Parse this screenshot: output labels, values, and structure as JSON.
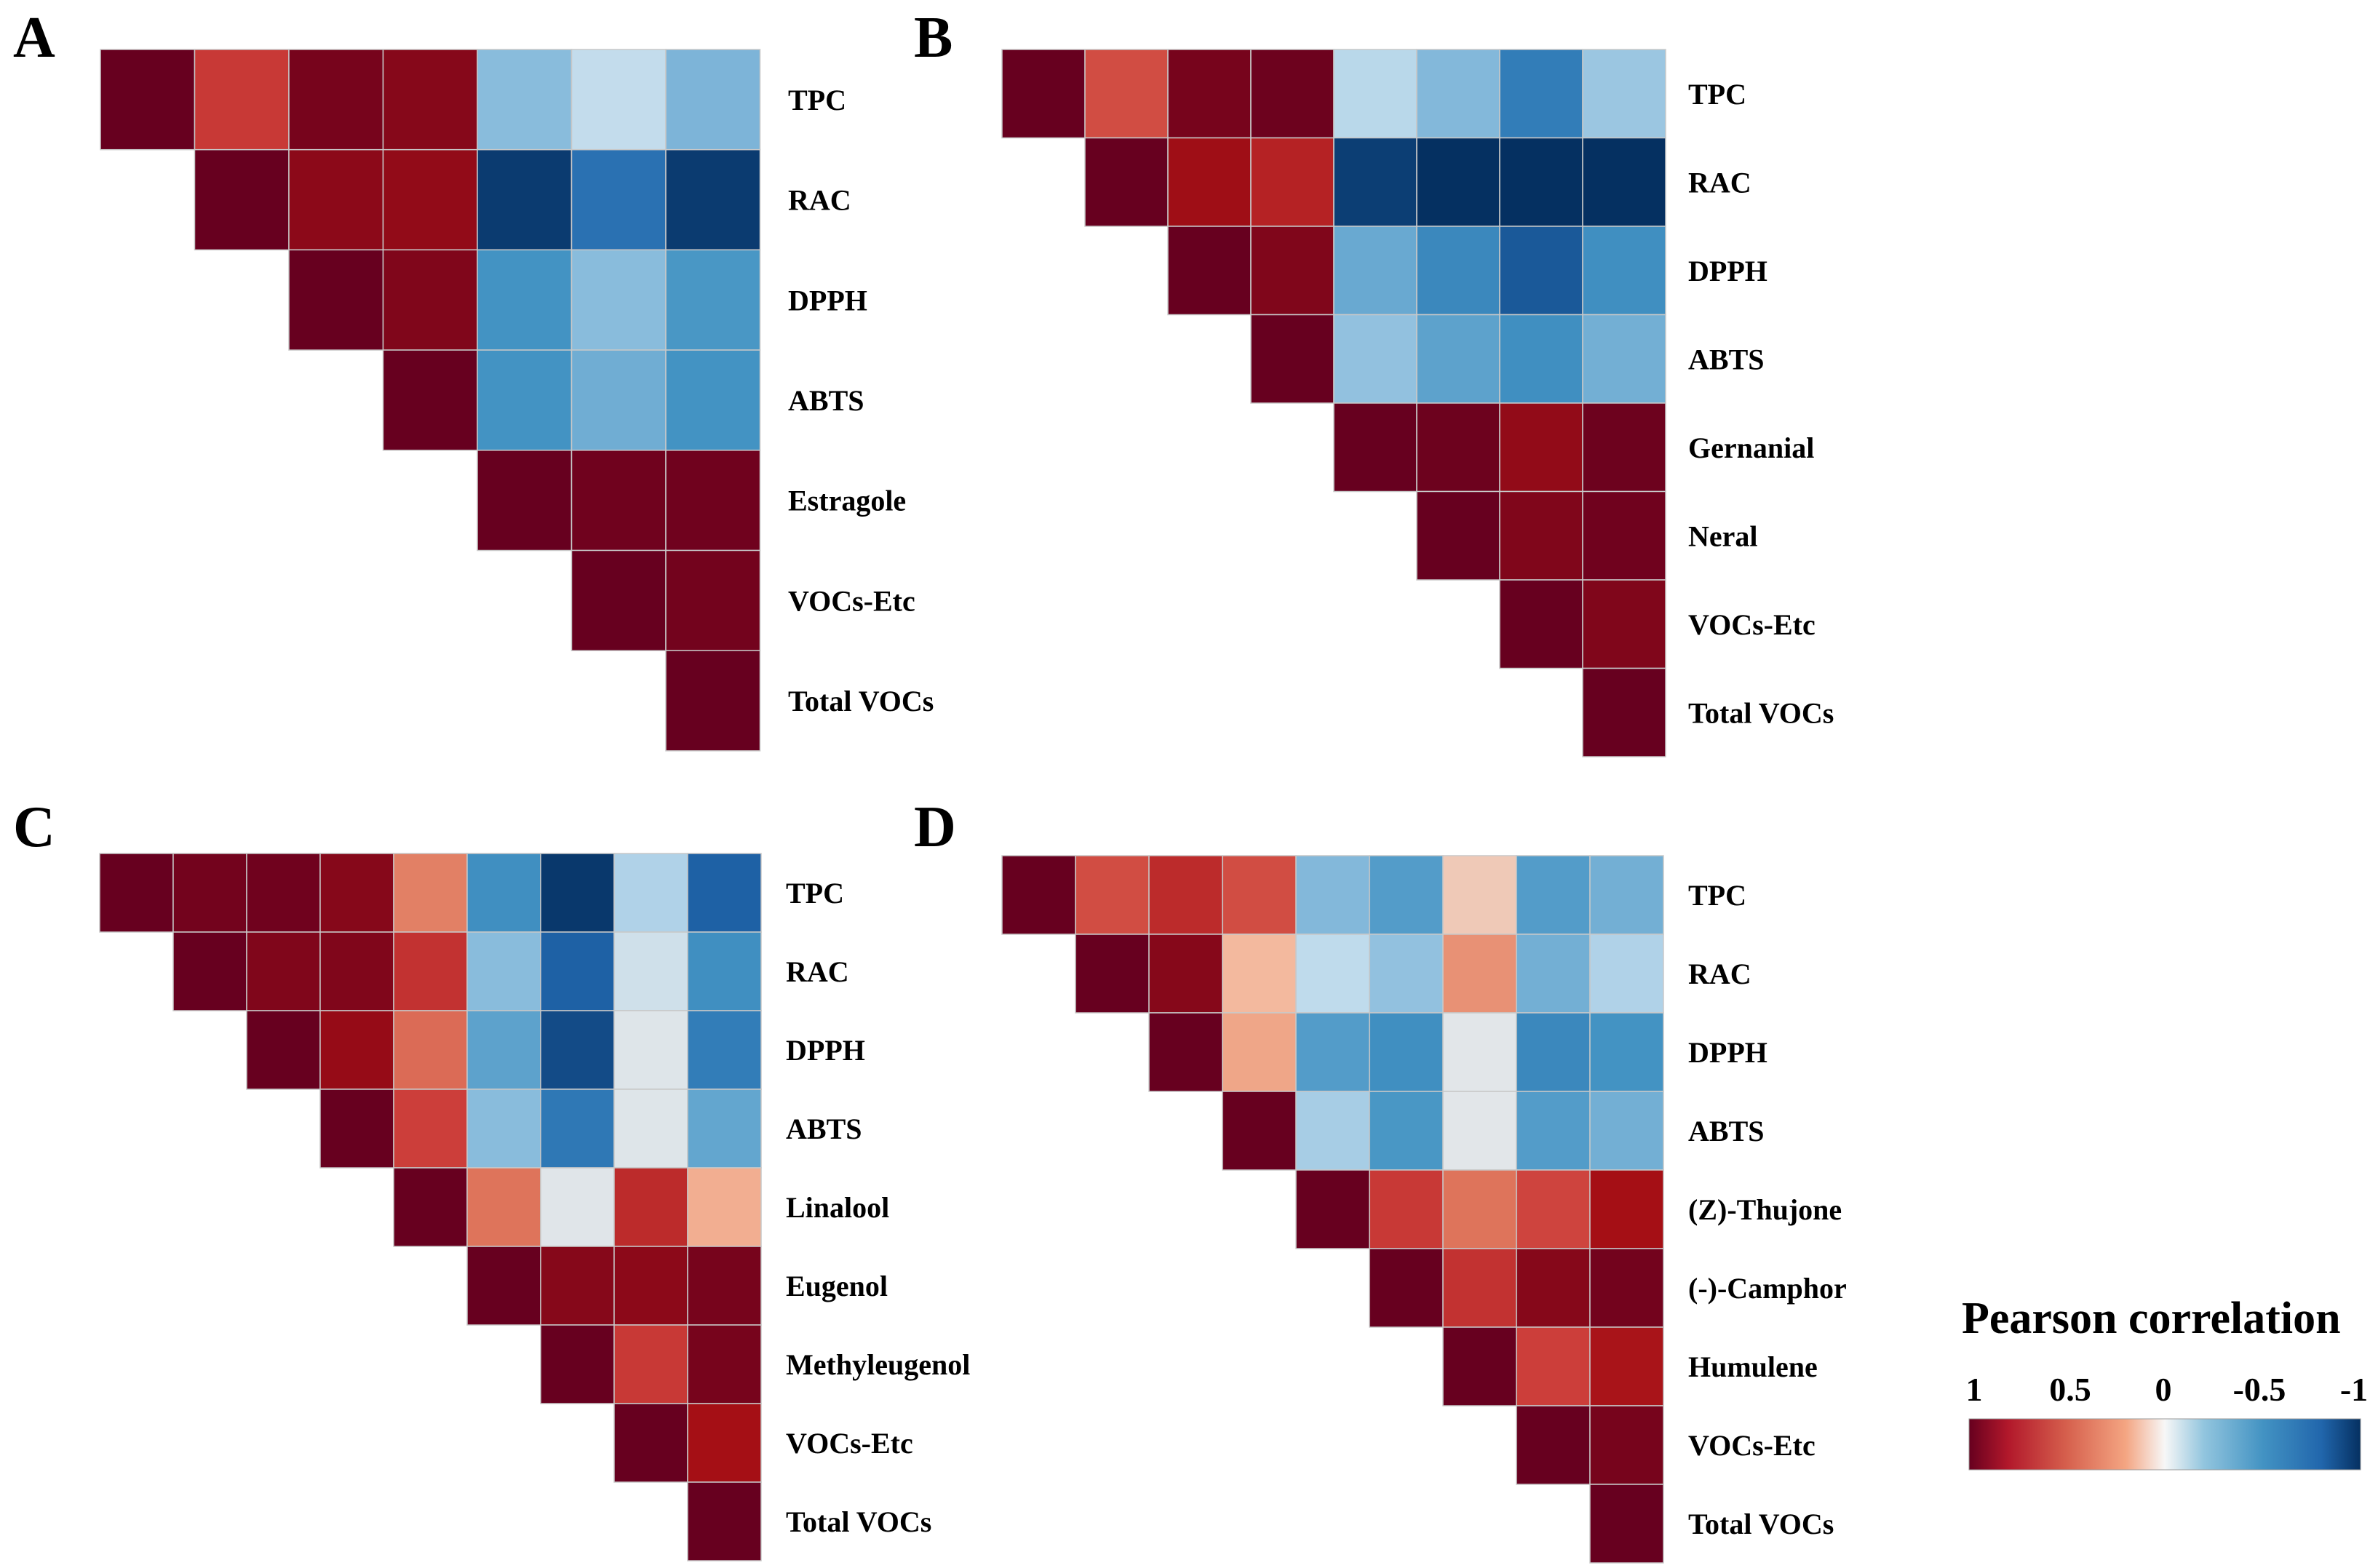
{
  "chart_data": [
    {
      "type": "heatmap",
      "panel": "A",
      "shape": "upper-triangular correlation matrix (diagonal = 1)",
      "rows": [
        "TPC",
        "RAC",
        "DPPH",
        "ABTS",
        "Estragole",
        "VOCs-Etc",
        "Total VOCs"
      ],
      "values": [
        [
          1,
          0.62,
          0.95,
          0.9,
          -0.38,
          -0.18,
          -0.42
        ],
        [
          null,
          1,
          0.88,
          0.86,
          -0.96,
          -0.75,
          -0.96
        ],
        [
          null,
          null,
          1,
          0.92,
          -0.6,
          -0.38,
          -0.58
        ],
        [
          null,
          null,
          null,
          1,
          -0.6,
          -0.46,
          -0.6
        ],
        [
          null,
          null,
          null,
          null,
          1,
          0.97,
          0.97
        ],
        [
          null,
          null,
          null,
          null,
          null,
          1,
          0.96
        ],
        [
          null,
          null,
          null,
          null,
          null,
          null,
          1
        ]
      ]
    },
    {
      "type": "heatmap",
      "panel": "B",
      "shape": "upper-triangular correlation matrix (diagonal = 1)",
      "rows": [
        "TPC",
        "RAC",
        "DPPH",
        "ABTS",
        "Gernanial",
        "Neral",
        "VOCs-Etc",
        "Total VOCs"
      ],
      "values": [
        [
          1,
          0.55,
          0.95,
          0.98,
          -0.22,
          -0.4,
          -0.7,
          -0.32
        ],
        [
          null,
          1,
          0.82,
          0.72,
          -0.95,
          -1.0,
          -1.0,
          -1.0
        ],
        [
          null,
          null,
          1,
          0.92,
          -0.48,
          -0.65,
          -0.85,
          -0.62
        ],
        [
          null,
          null,
          null,
          1,
          -0.35,
          -0.52,
          -0.62,
          -0.45
        ],
        [
          null,
          null,
          null,
          null,
          1,
          0.98,
          0.86,
          0.98
        ],
        [
          null,
          null,
          null,
          null,
          null,
          1,
          0.92,
          0.97
        ],
        [
          null,
          null,
          null,
          null,
          null,
          null,
          1,
          0.92
        ],
        [
          null,
          null,
          null,
          null,
          null,
          null,
          null,
          1
        ]
      ]
    },
    {
      "type": "heatmap",
      "panel": "C",
      "shape": "upper-triangular correlation matrix (diagonal = 1)",
      "rows": [
        "TPC",
        "RAC",
        "DPPH",
        "ABTS",
        "Linalool",
        "Eugenol",
        "Methyleugenol",
        "VOCs-Etc",
        "Total VOCs"
      ],
      "values": [
        [
          1,
          0.96,
          0.97,
          0.9,
          0.38,
          -0.62,
          -0.97,
          -0.25,
          -0.82
        ],
        [
          null,
          1,
          0.92,
          0.92,
          0.65,
          -0.38,
          -0.82,
          -0.12,
          -0.62
        ],
        [
          null,
          null,
          1,
          0.85,
          0.45,
          -0.52,
          -0.9,
          -0.05,
          -0.7
        ],
        [
          null,
          null,
          null,
          1,
          0.6,
          -0.38,
          -0.72,
          -0.05,
          -0.5
        ],
        [
          null,
          null,
          null,
          null,
          1,
          0.42,
          -0.04,
          0.68,
          0.22
        ],
        [
          null,
          null,
          null,
          null,
          null,
          1,
          0.9,
          0.88,
          0.95
        ],
        [
          null,
          null,
          null,
          null,
          null,
          null,
          1,
          0.62,
          0.95
        ],
        [
          null,
          null,
          null,
          null,
          null,
          null,
          null,
          1,
          0.8
        ],
        [
          null,
          null,
          null,
          null,
          null,
          null,
          null,
          null,
          1
        ]
      ]
    },
    {
      "type": "heatmap",
      "panel": "D",
      "shape": "upper-triangular correlation matrix (diagonal = 1)",
      "rows": [
        "TPC",
        "RAC",
        "DPPH",
        "ABTS",
        "(Z)-Thujone",
        "(-)-Camphor",
        "Humulene",
        "VOCs-Etc",
        "Total VOCs"
      ],
      "values": [
        [
          1,
          0.55,
          0.68,
          0.55,
          -0.4,
          -0.55,
          0.12,
          -0.55,
          -0.45
        ],
        [
          null,
          1,
          0.9,
          0.18,
          -0.2,
          -0.35,
          0.32,
          -0.45,
          -0.25
        ],
        [
          null,
          null,
          1,
          0.25,
          -0.55,
          -0.62,
          -0.03,
          -0.65,
          -0.6
        ],
        [
          null,
          null,
          null,
          1,
          -0.28,
          -0.58,
          -0.03,
          -0.55,
          -0.45
        ],
        [
          null,
          null,
          null,
          null,
          1,
          0.62,
          0.42,
          0.58,
          0.8
        ],
        [
          null,
          null,
          null,
          null,
          null,
          1,
          0.65,
          0.9,
          0.96
        ],
        [
          null,
          null,
          null,
          null,
          null,
          null,
          1,
          0.6,
          0.78
        ],
        [
          null,
          null,
          null,
          null,
          null,
          null,
          null,
          1,
          0.95
        ],
        [
          null,
          null,
          null,
          null,
          null,
          null,
          null,
          null,
          1
        ]
      ]
    }
  ],
  "legend": {
    "title": "Pearson correlation",
    "ticks": [
      "1",
      "0.5",
      "0",
      "-0.5",
      "-1"
    ],
    "range": [
      1,
      -1
    ]
  },
  "colors": {
    "positive_1": "#67001f",
    "positive_0.8": "#a50f15",
    "positive_0.6": "#cc3e3a",
    "positive_0.4": "#e07a5f",
    "positive_0.2": "#f4b496",
    "zero": "#f7f7f7",
    "negative_0.2": "#bfdbec",
    "negative_0.4": "#83b8da",
    "negative_0.6": "#4393c3",
    "negative_0.8": "#2166ac",
    "negative_1": "#053061",
    "cell_border": "#c8c8c8"
  }
}
